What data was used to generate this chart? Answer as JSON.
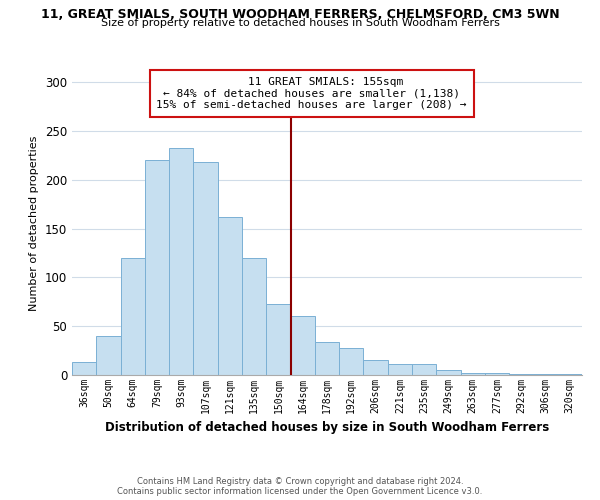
{
  "title_line1": "11, GREAT SMIALS, SOUTH WOODHAM FERRERS, CHELMSFORD, CM3 5WN",
  "title_line2": "Size of property relative to detached houses in South Woodham Ferrers",
  "xlabel": "Distribution of detached houses by size in South Woodham Ferrers",
  "ylabel": "Number of detached properties",
  "bar_labels": [
    "36sqm",
    "50sqm",
    "64sqm",
    "79sqm",
    "93sqm",
    "107sqm",
    "121sqm",
    "135sqm",
    "150sqm",
    "164sqm",
    "178sqm",
    "192sqm",
    "206sqm",
    "221sqm",
    "235sqm",
    "249sqm",
    "263sqm",
    "277sqm",
    "292sqm",
    "306sqm",
    "320sqm"
  ],
  "bar_values": [
    13,
    40,
    120,
    220,
    233,
    218,
    162,
    120,
    73,
    60,
    34,
    28,
    15,
    11,
    11,
    5,
    2,
    2,
    1,
    1,
    1
  ],
  "bar_color": "#c6dff0",
  "bar_edge_color": "#7ab0d4",
  "ylim": [
    0,
    310
  ],
  "yticks": [
    0,
    50,
    100,
    150,
    200,
    250,
    300
  ],
  "annotation_title": "11 GREAT SMIALS: 155sqm",
  "annotation_line1": "← 84% of detached houses are smaller (1,138)",
  "annotation_line2": "15% of semi-detached houses are larger (208) →",
  "vline_index": 8.5,
  "vline_color": "#8b0000",
  "footer_line1": "Contains HM Land Registry data © Crown copyright and database right 2024.",
  "footer_line2": "Contains public sector information licensed under the Open Government Licence v3.0.",
  "background_color": "#ffffff",
  "grid_color": "#d0dce8"
}
